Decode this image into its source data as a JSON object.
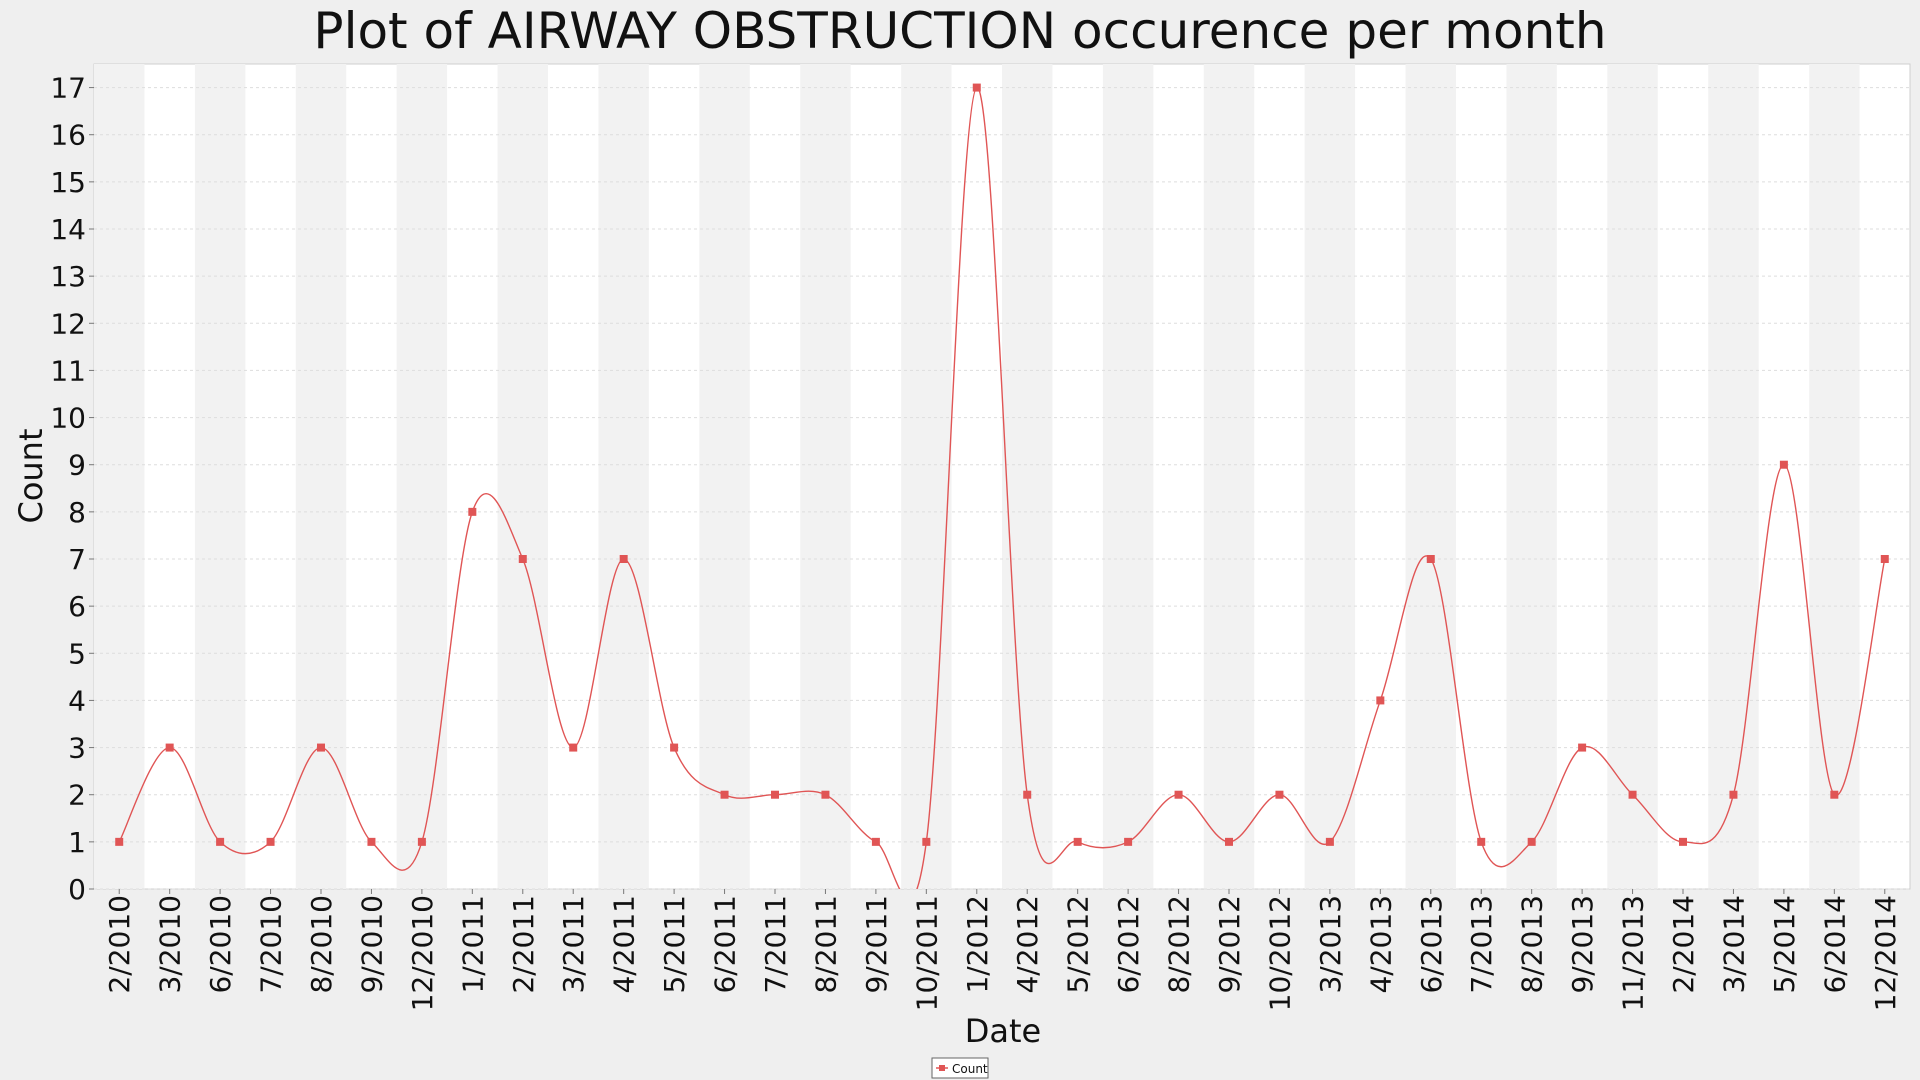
{
  "chart_data": {
    "type": "line",
    "title": "Plot of AIRWAY OBSTRUCTION occurence per month",
    "xlabel": "Date",
    "ylabel": "Count",
    "ylim": [
      0,
      17.5
    ],
    "yticks": [
      0,
      1,
      2,
      3,
      4,
      5,
      6,
      7,
      8,
      9,
      10,
      11,
      12,
      13,
      14,
      15,
      16,
      17
    ],
    "grid": true,
    "legend_position": "bottom-center",
    "series": [
      {
        "name": "Count",
        "color": "#e05555",
        "marker": "square",
        "x": [
          "2/2010",
          "3/2010",
          "6/2010",
          "7/2010",
          "8/2010",
          "9/2010",
          "12/2010",
          "1/2011",
          "2/2011",
          "3/2011",
          "4/2011",
          "5/2011",
          "6/2011",
          "7/2011",
          "8/2011",
          "9/2011",
          "10/2011",
          "1/2012",
          "4/2012",
          "5/2012",
          "6/2012",
          "8/2012",
          "9/2012",
          "10/2012",
          "3/2013",
          "4/2013",
          "6/2013",
          "7/2013",
          "8/2013",
          "9/2013",
          "11/2013",
          "2/2014",
          "3/2014",
          "5/2014",
          "6/2014",
          "12/2014"
        ],
        "values": [
          1,
          3,
          1,
          1,
          3,
          1,
          1,
          8,
          7,
          3,
          7,
          3,
          2,
          2,
          2,
          1,
          1,
          17,
          2,
          1,
          1,
          2,
          1,
          2,
          1,
          4,
          7,
          1,
          1,
          3,
          2,
          1,
          2,
          9,
          2,
          7
        ]
      }
    ]
  }
}
